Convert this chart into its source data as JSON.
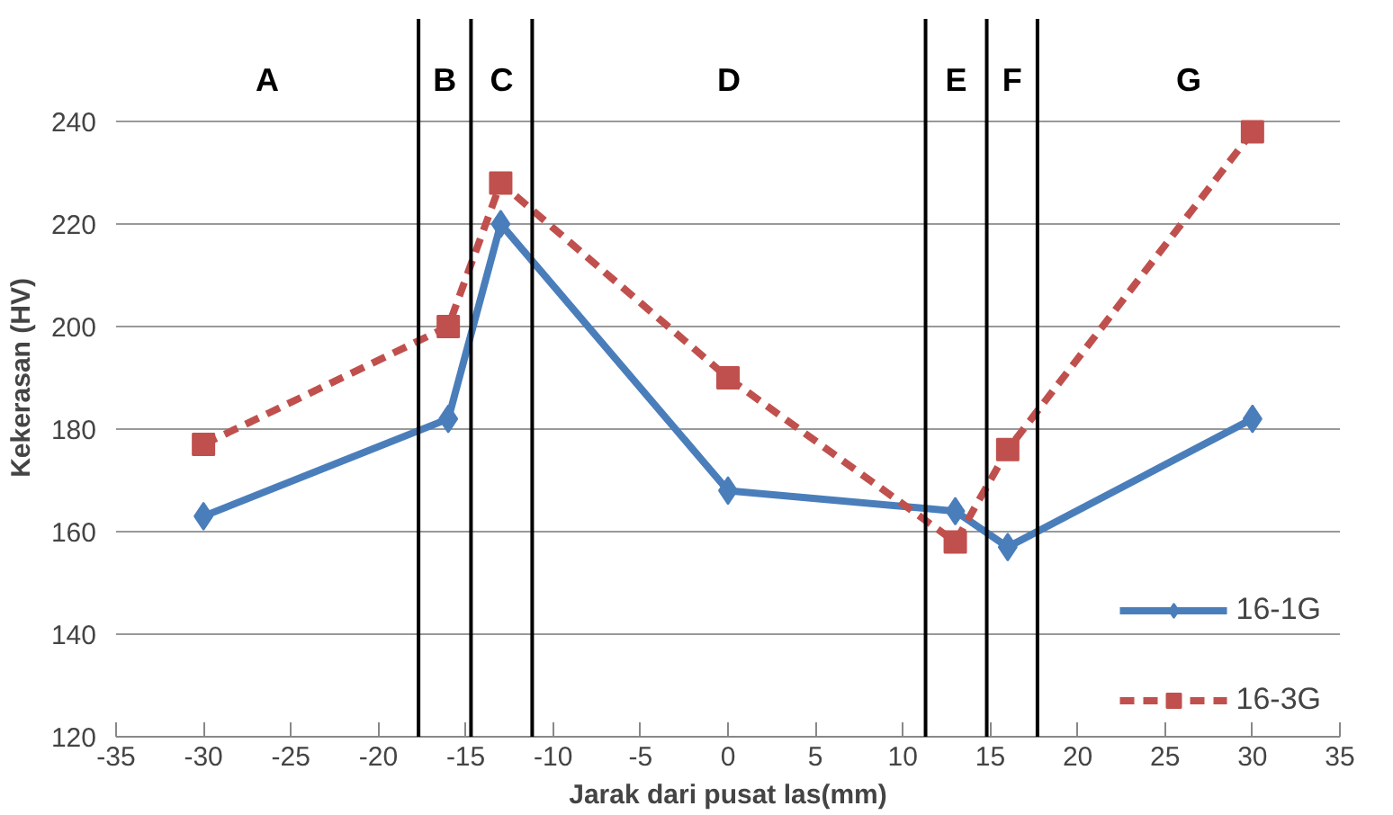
{
  "chart_data": {
    "type": "line",
    "xlabel": "Jarak dari pusat las(mm)",
    "ylabel": "Kekerasan (HV)",
    "x": [
      -30,
      -16,
      -13,
      0,
      13,
      16,
      30
    ],
    "series": [
      {
        "name": "16-1G",
        "color": "#4a7ebb",
        "marker": "diamond",
        "line_style": "solid",
        "values": [
          163,
          182,
          220,
          168,
          164,
          157,
          182
        ]
      },
      {
        "name": "16-3G",
        "color": "#c0504d",
        "marker": "square",
        "line_style": "dashed",
        "values": [
          177,
          200,
          228,
          190,
          158,
          176,
          238
        ]
      }
    ],
    "xlim": [
      -35,
      35
    ],
    "xticks": [
      -35,
      -30,
      -25,
      -20,
      -15,
      -10,
      -5,
      0,
      5,
      10,
      15,
      20,
      25,
      30,
      35
    ],
    "ylim": [
      120,
      260
    ],
    "yticks": [
      120,
      140,
      160,
      180,
      200,
      220,
      240
    ],
    "grid": "y",
    "legend": "bottom right",
    "ref_lines": [
      {
        "axis": "x",
        "value": -17.7,
        "label": null,
        "color": "#000000"
      },
      {
        "axis": "x",
        "value": -14.7,
        "label": null,
        "color": "#000000"
      },
      {
        "axis": "x",
        "value": -11.2,
        "label": null,
        "color": "#000000"
      },
      {
        "axis": "x",
        "value": 11.3,
        "label": null,
        "color": "#000000"
      },
      {
        "axis": "x",
        "value": 14.8,
        "label": null,
        "color": "#000000"
      },
      {
        "axis": "x",
        "value": 17.7,
        "label": null,
        "color": "#000000"
      }
    ],
    "annotations": [
      "A",
      "B",
      "C",
      "D",
      "E",
      "F",
      "G"
    ]
  }
}
